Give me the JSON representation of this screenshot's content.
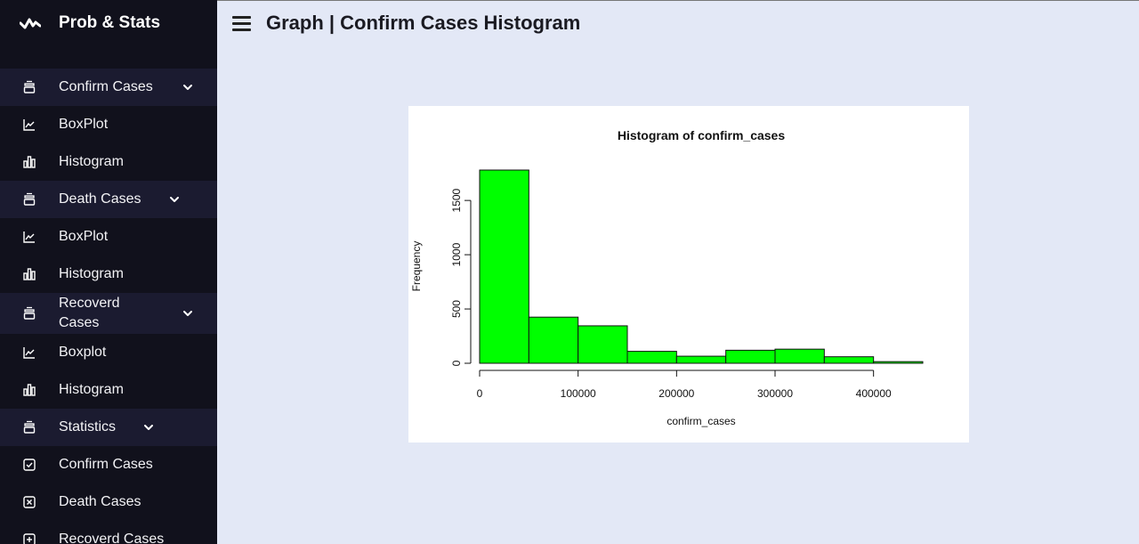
{
  "app": {
    "title": "Prob & Stats"
  },
  "header": {
    "title": "Graph | Confirm Cases Histogram"
  },
  "sidebar": {
    "items": [
      {
        "label": "Confirm Cases",
        "type": "group",
        "icon": "layers-icon"
      },
      {
        "label": "BoxPlot",
        "type": "link",
        "icon": "line-chart-icon"
      },
      {
        "label": "Histogram",
        "type": "link",
        "icon": "bar-chart-icon"
      },
      {
        "label": "Death Cases",
        "type": "group",
        "icon": "layers-icon"
      },
      {
        "label": "BoxPlot",
        "type": "link",
        "icon": "line-chart-icon"
      },
      {
        "label": "Histogram",
        "type": "link",
        "icon": "bar-chart-icon"
      },
      {
        "label": "Recoverd Cases",
        "type": "group",
        "icon": "layers-icon"
      },
      {
        "label": "Boxplot",
        "type": "link",
        "icon": "line-chart-icon"
      },
      {
        "label": "Histogram",
        "type": "link",
        "icon": "bar-chart-icon"
      },
      {
        "label": "Statistics",
        "type": "group",
        "icon": "layers-icon"
      },
      {
        "label": "Confirm Cases",
        "type": "link",
        "icon": "check-square-icon"
      },
      {
        "label": "Death Cases",
        "type": "link",
        "icon": "x-square-icon"
      },
      {
        "label": "Recoverd Cases",
        "type": "link",
        "icon": "plus-square-icon"
      }
    ]
  },
  "chart_data": {
    "type": "bar",
    "title": "Histogram of confirm_cases",
    "xlabel": "confirm_cases",
    "ylabel": "Frequency",
    "bins": [
      {
        "from": 0,
        "to": 50000,
        "value": 1780
      },
      {
        "from": 50000,
        "to": 100000,
        "value": 425
      },
      {
        "from": 100000,
        "to": 150000,
        "value": 345
      },
      {
        "from": 150000,
        "to": 200000,
        "value": 110
      },
      {
        "from": 200000,
        "to": 250000,
        "value": 65
      },
      {
        "from": 250000,
        "to": 300000,
        "value": 120
      },
      {
        "from": 300000,
        "to": 350000,
        "value": 130
      },
      {
        "from": 350000,
        "to": 400000,
        "value": 60
      },
      {
        "from": 400000,
        "to": 450000,
        "value": 15
      }
    ],
    "xticks": [
      0,
      100000,
      200000,
      300000,
      400000
    ],
    "xtick_labels": [
      "0",
      "100000",
      "200000",
      "300000",
      "400000"
    ],
    "yticks": [
      0,
      500,
      1000,
      1500
    ],
    "ytick_labels": [
      "0",
      "500",
      "1000",
      "1500"
    ],
    "xlim": [
      0,
      450000
    ],
    "ylim": [
      0,
      1780
    ],
    "bar_color": "#00ff00",
    "grid": false
  }
}
